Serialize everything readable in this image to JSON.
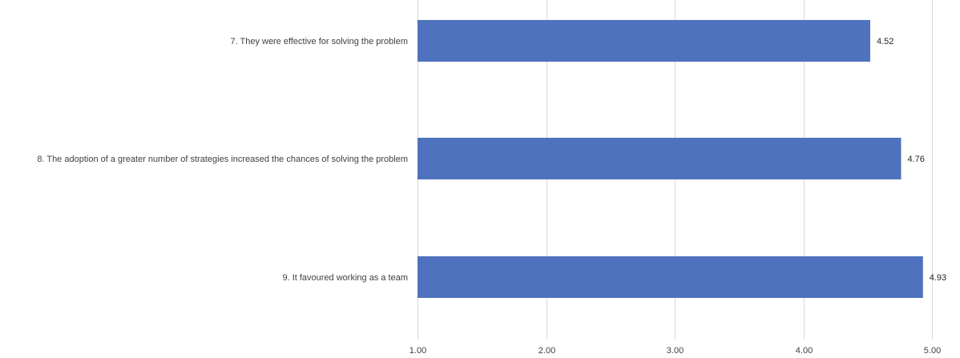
{
  "chart_data": {
    "type": "bar",
    "orientation": "horizontal",
    "categories": [
      "7. They were effective for solving the problem",
      "8. The adoption of a greater number of strategies increased the chances of solving the problem",
      "9. It favoured working as a team"
    ],
    "values": [
      4.52,
      4.76,
      4.93
    ],
    "value_labels": [
      "4.52",
      "4.76",
      "4.93"
    ],
    "xlim": [
      1.0,
      5.0
    ],
    "x_ticks": [
      "1.00",
      "2.00",
      "3.00",
      "4.00",
      "5.00"
    ],
    "grid": "vertical",
    "legend": "none",
    "title": "",
    "xlabel": "",
    "ylabel": "",
    "colors": {
      "bar": "#4F72BE",
      "grid": "#D9D9D9",
      "text": "#404040"
    }
  }
}
